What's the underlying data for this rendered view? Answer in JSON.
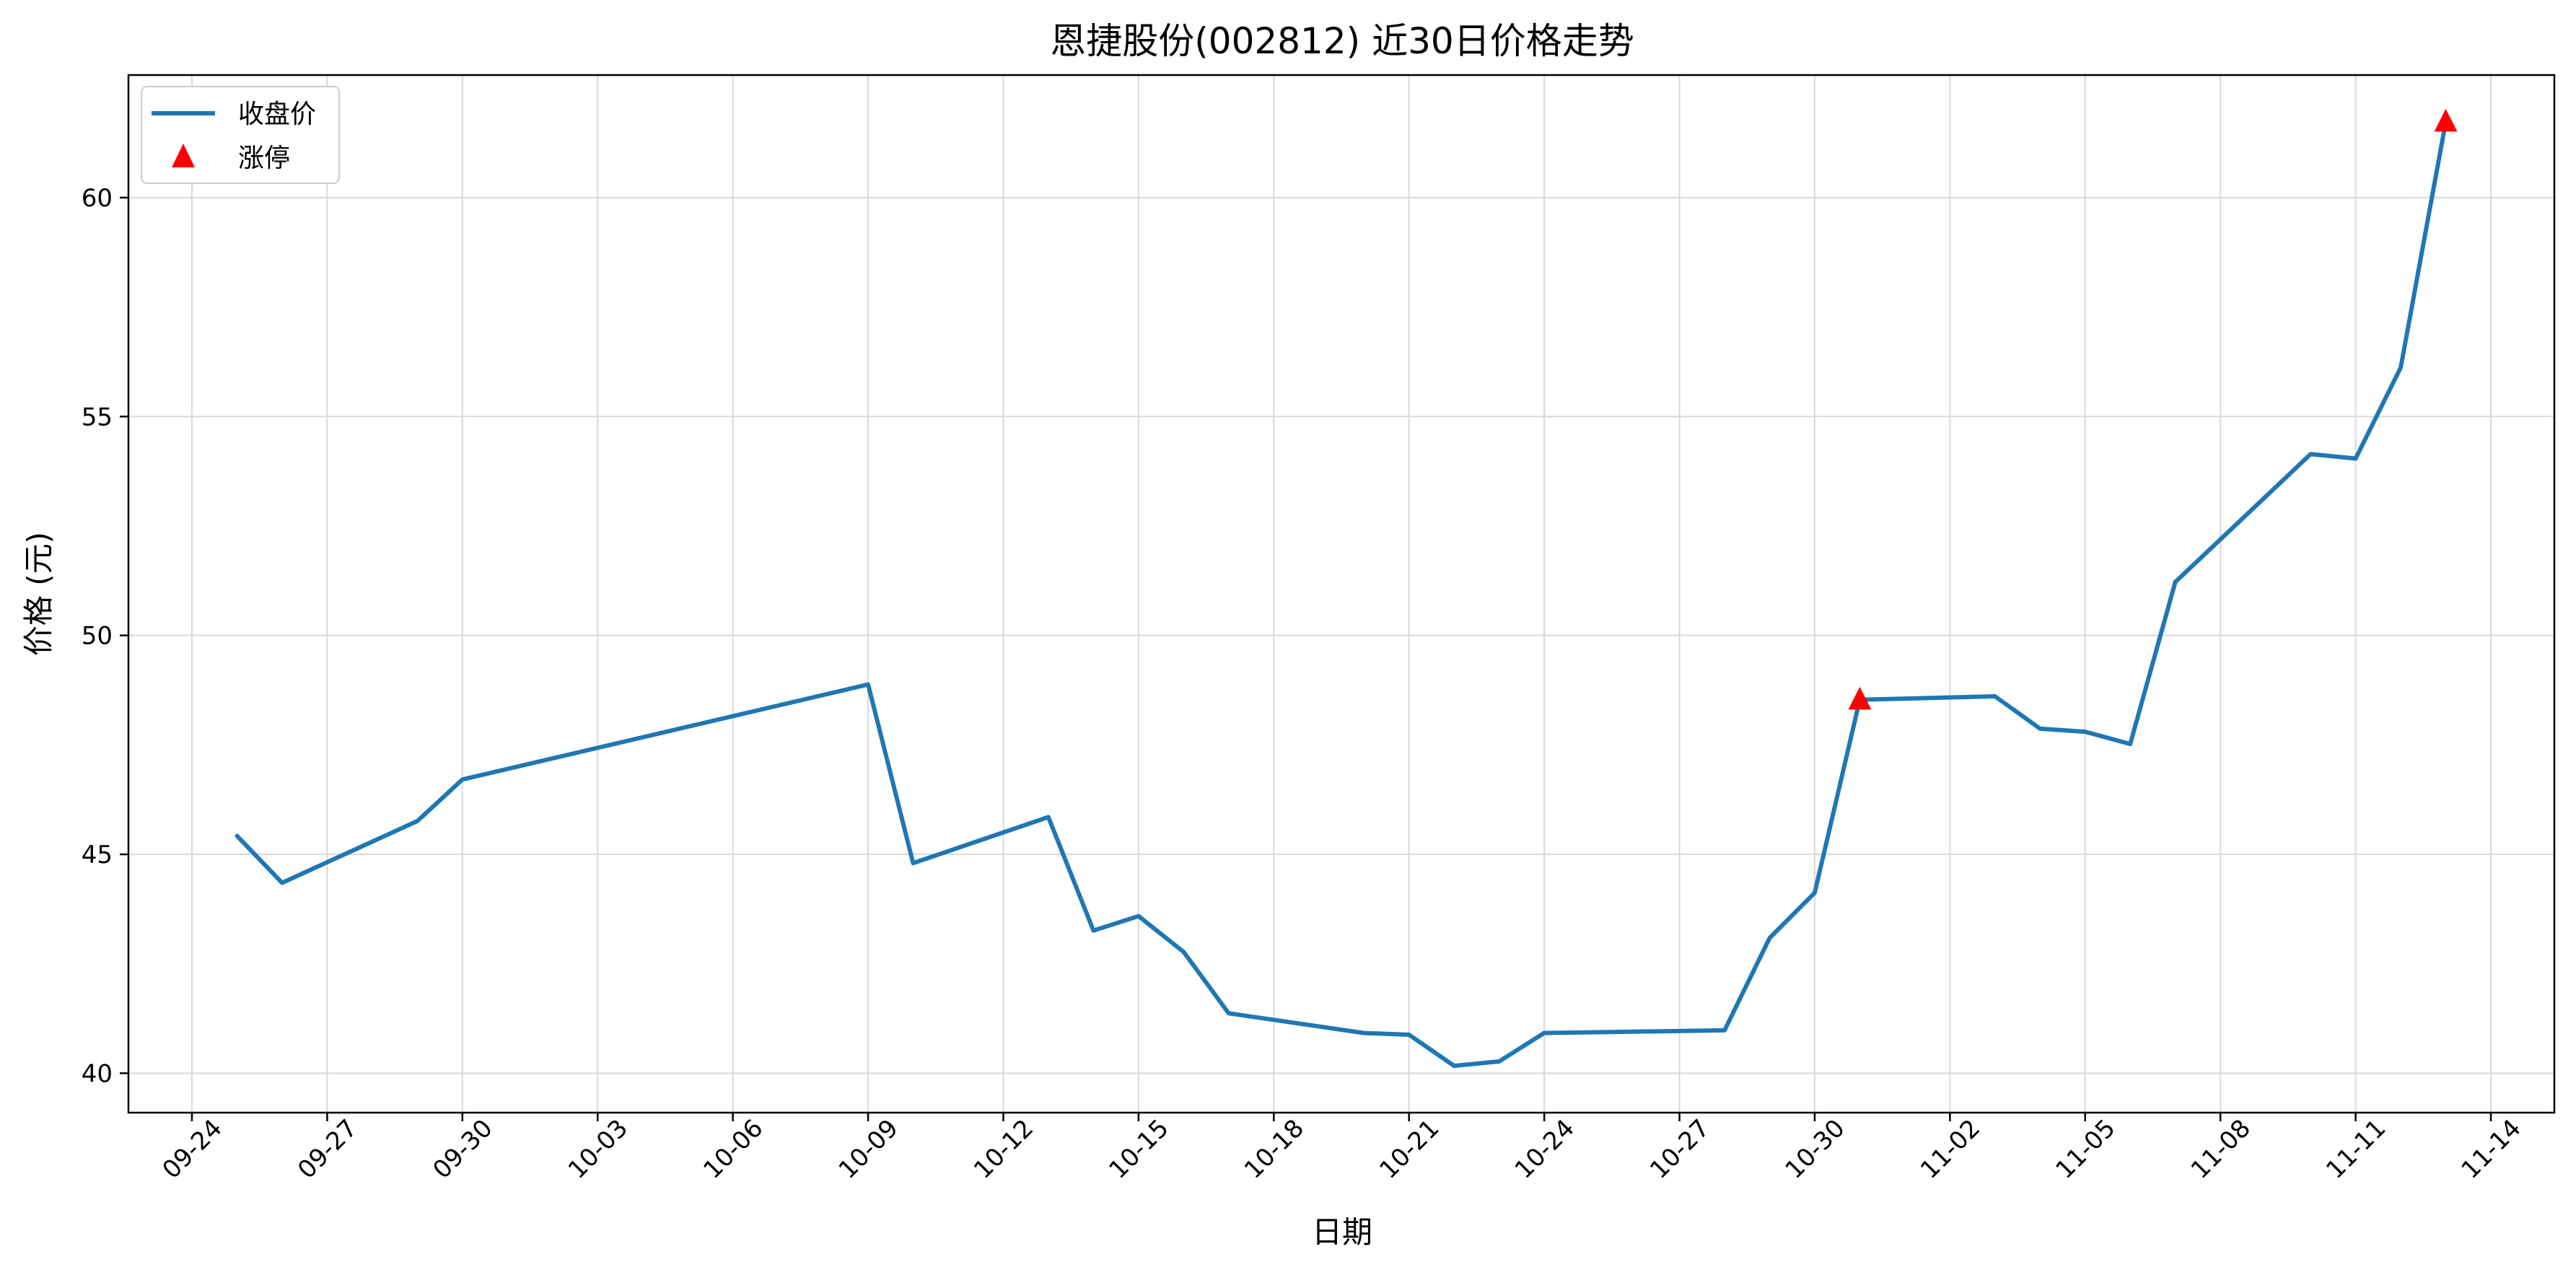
{
  "chart_data": {
    "type": "line",
    "title": "恩捷股份(002812) 近30日价格走势",
    "xlabel": "日期",
    "ylabel": "价格 (元)",
    "x_tick_labels": [
      "09-24",
      "09-27",
      "09-30",
      "10-03",
      "10-06",
      "10-09",
      "10-12",
      "10-15",
      "10-18",
      "10-21",
      "10-24",
      "10-27",
      "10-30",
      "11-02",
      "11-05",
      "11-08",
      "11-11",
      "11-14"
    ],
    "y_ticks": [
      40,
      45,
      50,
      55,
      60
    ],
    "ylim": [
      39.1,
      62.8
    ],
    "grid": true,
    "legend_position": "top-left",
    "series": [
      {
        "name": "收盘价",
        "color": "#1f77b4",
        "x": [
          "09-25",
          "09-26",
          "09-29",
          "09-30",
          "10-09",
          "10-10",
          "10-13",
          "10-14",
          "10-15",
          "10-16",
          "10-17",
          "10-20",
          "10-21",
          "10-22",
          "10-23",
          "10-24",
          "10-28",
          "10-29",
          "10-30",
          "10-31",
          "11-03",
          "11-04",
          "11-05",
          "11-06",
          "11-07",
          "11-10",
          "11-11",
          "11-12",
          "11-13"
        ],
        "y": [
          45.42,
          44.35,
          45.76,
          46.71,
          48.88,
          44.8,
          45.85,
          43.26,
          43.59,
          42.77,
          41.37,
          40.92,
          40.88,
          40.17,
          40.27,
          40.92,
          40.98,
          43.09,
          44.12,
          48.53,
          48.61,
          47.87,
          47.8,
          47.52,
          51.22,
          54.14,
          54.04,
          56.12,
          61.73
        ]
      },
      {
        "name": "涨停",
        "color": "#ff0000",
        "marker": "triangle",
        "x": [
          "10-31",
          "11-13"
        ],
        "y": [
          48.53,
          61.73
        ]
      }
    ]
  }
}
